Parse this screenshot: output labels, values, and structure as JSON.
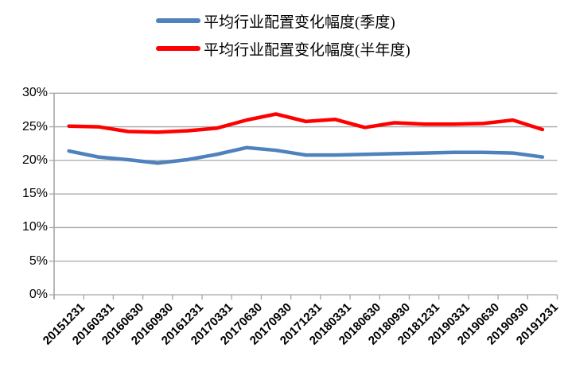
{
  "chart_data": {
    "type": "line",
    "title": "",
    "xlabel": "",
    "ylabel": "",
    "categories": [
      "20151231",
      "20160331",
      "20160630",
      "20160930",
      "20161231",
      "20170331",
      "20170630",
      "20170930",
      "20171231",
      "20180331",
      "20180630",
      "20180930",
      "20181231",
      "20190331",
      "20190630",
      "20190930",
      "20191231"
    ],
    "series": [
      {
        "key": "quarterly",
        "name": "平均行业配置变化幅度(季度)",
        "color": "#4F81BD",
        "values": [
          21.4,
          20.5,
          20.1,
          19.6,
          20.1,
          20.9,
          21.9,
          21.5,
          20.8,
          20.8,
          20.9,
          21.0,
          21.1,
          21.2,
          21.2,
          21.1,
          20.5
        ]
      },
      {
        "key": "semiannual",
        "name": "平均行业配置变化幅度(半年度)",
        "color": "#FF0000",
        "values": [
          25.1,
          25.0,
          24.3,
          24.2,
          24.4,
          24.8,
          26.0,
          26.9,
          25.8,
          26.1,
          24.9,
          25.6,
          25.4,
          25.4,
          25.5,
          26.0,
          24.6
        ]
      }
    ],
    "ylim": [
      0,
      30
    ],
    "ytick_step": 5,
    "ytick_labels": [
      "0%",
      "5%",
      "10%",
      "15%",
      "20%",
      "25%",
      "30%"
    ],
    "grid": "horizontal",
    "legend_position": "top",
    "colors": {
      "gridline": "#A6A6A6",
      "axis": "#A6A6A6",
      "label_text": "#000000"
    }
  }
}
